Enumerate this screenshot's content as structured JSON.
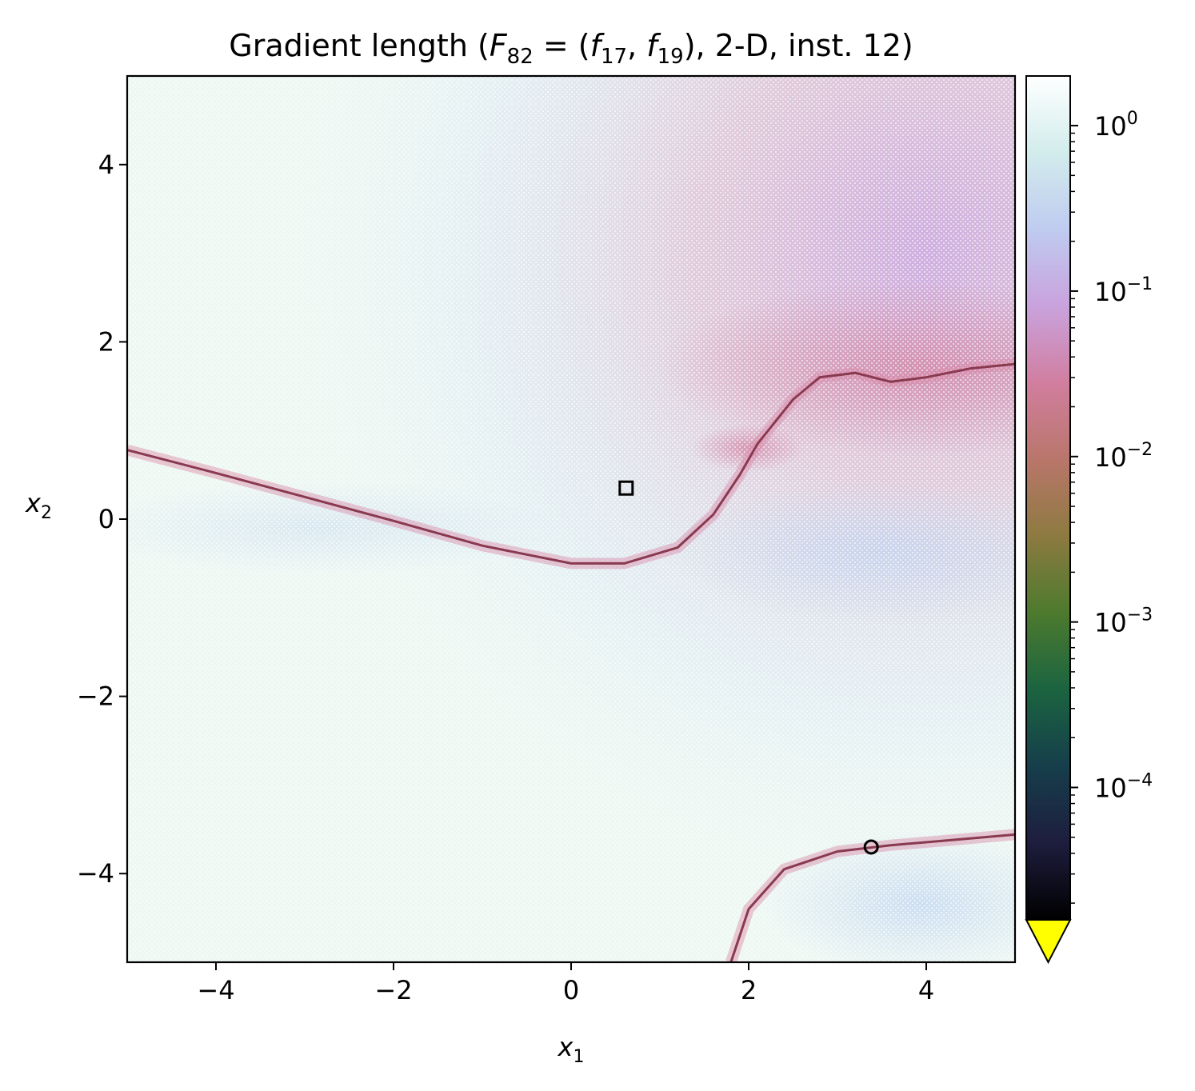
{
  "chart_data": {
    "type": "heatmap",
    "title": {
      "prefix": "Gradient length (",
      "F_letter": "F",
      "F_sub": "82",
      "f1_letter": "f",
      "f1_sub": "17",
      "f2_letter": "f",
      "f2_sub": "19",
      "suffix": "), 2-D, inst. 12)"
    },
    "xlabel": {
      "letter": "x",
      "sub": "1"
    },
    "ylabel": {
      "letter": "x",
      "sub": "2"
    },
    "xlim": [
      -5,
      5
    ],
    "ylim": [
      -5,
      5
    ],
    "xticks": [
      -4,
      -2,
      0,
      2,
      4
    ],
    "xtick_labels": [
      "−4",
      "−2",
      "0",
      "2",
      "4"
    ],
    "yticks": [
      4,
      2,
      0,
      -2,
      -4
    ],
    "ytick_labels": [
      "4",
      "2",
      "0",
      "−2",
      "−4"
    ],
    "colorbar": {
      "scale": "log",
      "lim_log10": [
        -4.8,
        0.3
      ],
      "ticks_log10": [
        0,
        -1,
        -2,
        -3,
        -4
      ],
      "tick_labels": [
        {
          "base": "10",
          "exp": "0"
        },
        {
          "base": "10",
          "exp": "−1"
        },
        {
          "base": "10",
          "exp": "−2"
        },
        {
          "base": "10",
          "exp": "−3"
        },
        {
          "base": "10",
          "exp": "−4"
        }
      ],
      "colormap": [
        "#000000",
        "#1e1d3e",
        "#163e4b",
        "#1b6440",
        "#4d7a2e",
        "#8d7a40",
        "#b9766a",
        "#d17e9f",
        "#c9a2dd",
        "#bfcbf0",
        "#d2ecec",
        "#ffffff"
      ],
      "extend_color": "#ffff00"
    },
    "markers": [
      {
        "shape": "square",
        "x": 0.62,
        "y": 0.35
      },
      {
        "shape": "circle",
        "x": 3.38,
        "y": -3.7
      }
    ],
    "valleys": [
      {
        "name": "left-valley",
        "points": [
          [
            -5,
            0.78
          ],
          [
            -4,
            0.52
          ],
          [
            -3,
            0.25
          ],
          [
            -2,
            -0.02
          ],
          [
            -1,
            -0.3
          ],
          [
            0,
            -0.5
          ],
          [
            0.6,
            -0.5
          ],
          [
            1.2,
            -0.32
          ],
          [
            1.6,
            0.05
          ],
          [
            1.9,
            0.5
          ],
          [
            2.1,
            0.85
          ],
          [
            2.5,
            1.35
          ],
          [
            2.8,
            1.6
          ],
          [
            3.2,
            1.65
          ],
          [
            3.6,
            1.55
          ],
          [
            4.0,
            1.6
          ],
          [
            4.5,
            1.7
          ],
          [
            5,
            1.75
          ]
        ]
      },
      {
        "name": "lower-valley",
        "points": [
          [
            1.8,
            -5
          ],
          [
            2.0,
            -4.4
          ],
          [
            2.4,
            -3.95
          ],
          [
            3.0,
            -3.75
          ],
          [
            3.6,
            -3.68
          ],
          [
            4.3,
            -3.62
          ],
          [
            5,
            -3.56
          ]
        ]
      }
    ]
  }
}
